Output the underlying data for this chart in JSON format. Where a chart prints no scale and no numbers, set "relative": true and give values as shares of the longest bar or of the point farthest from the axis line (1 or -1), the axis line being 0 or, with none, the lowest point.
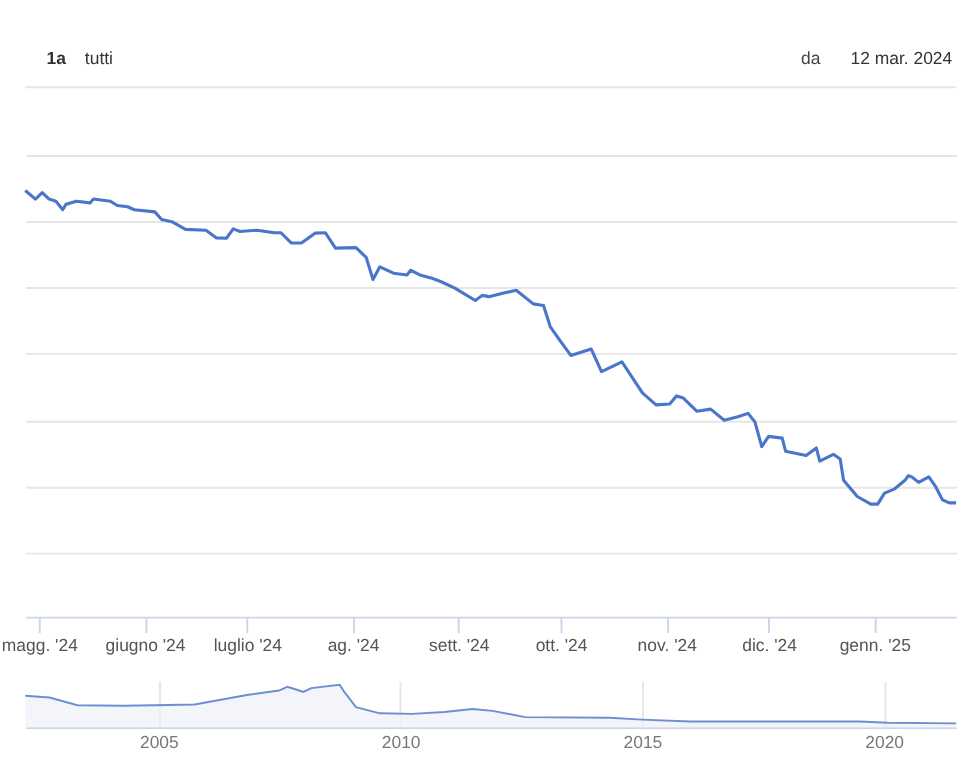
{
  "chart_data": [
    {
      "type": "line",
      "relative": true,
      "grid": "y",
      "color": "#4a76c9",
      "annotations": [
        "1a",
        "tutti",
        "da",
        "12 mar. 2024"
      ],
      "xlim": [
        "2024-04-27",
        "2025-01-25"
      ],
      "xticks": [
        {
          "value": "2024-05-01",
          "label": "magg. '24"
        },
        {
          "value": "2024-06-01",
          "label": "giugno '24"
        },
        {
          "value": "2024-07-01",
          "label": "luglio '24"
        },
        {
          "value": "2024-08-01",
          "label": "ag. '24"
        },
        {
          "value": "2024-09-01",
          "label": "sett. '24"
        },
        {
          "value": "2024-10-01",
          "label": "ott. '24"
        },
        {
          "value": "2024-11-01",
          "label": "nov. '24"
        },
        {
          "value": "2024-12-01",
          "label": "dic. '24"
        },
        {
          "value": "2025-01-01",
          "label": "genn. '25"
        }
      ],
      "x": [
        "2024-04-27",
        "2024-04-30",
        "2024-05-02",
        "2024-05-04",
        "2024-05-06",
        "2024-05-08",
        "2024-05-09",
        "2024-05-12",
        "2024-05-16",
        "2024-05-17",
        "2024-05-22",
        "2024-05-24",
        "2024-05-27",
        "2024-05-29",
        "2024-06-04",
        "2024-06-06",
        "2024-06-09",
        "2024-06-13",
        "2024-06-19",
        "2024-06-22",
        "2024-06-25",
        "2024-06-27",
        "2024-06-29",
        "2024-07-04",
        "2024-07-09",
        "2024-07-11",
        "2024-07-14",
        "2024-07-17",
        "2024-07-21",
        "2024-07-24",
        "2024-07-25",
        "2024-07-27",
        "2024-08-02",
        "2024-08-05",
        "2024-08-07",
        "2024-08-09",
        "2024-08-13",
        "2024-08-17",
        "2024-08-18",
        "2024-08-21",
        "2024-08-24",
        "2024-08-27",
        "2024-08-31",
        "2024-09-06",
        "2024-09-08",
        "2024-09-10",
        "2024-09-14",
        "2024-09-18",
        "2024-09-23",
        "2024-09-26",
        "2024-09-28",
        "2024-10-01",
        "2024-10-04",
        "2024-10-10",
        "2024-10-13",
        "2024-10-19",
        "2024-10-25",
        "2024-10-29",
        "2024-11-02",
        "2024-11-04",
        "2024-11-06",
        "2024-11-10",
        "2024-11-14",
        "2024-11-18",
        "2024-11-22",
        "2024-11-25",
        "2024-11-27",
        "2024-11-29",
        "2024-12-01",
        "2024-12-05",
        "2024-12-06",
        "2024-12-12",
        "2024-12-15",
        "2024-12-16",
        "2024-12-20",
        "2024-12-22",
        "2024-12-23",
        "2024-12-27",
        "2024-12-31",
        "2025-01-02",
        "2025-01-04",
        "2025-01-07",
        "2025-01-10",
        "2025-01-11",
        "2025-01-12",
        "2025-01-14",
        "2025-01-17",
        "2025-01-19",
        "2025-01-21",
        "2025-01-23",
        "2025-01-25"
      ],
      "values": [
        1.0,
        0.98,
        0.995,
        0.98,
        0.975,
        0.955,
        0.968,
        0.975,
        0.971,
        0.98,
        0.975,
        0.965,
        0.962,
        0.955,
        0.95,
        0.932,
        0.927,
        0.909,
        0.907,
        0.889,
        0.888,
        0.91,
        0.904,
        0.907,
        0.901,
        0.901,
        0.877,
        0.877,
        0.9,
        0.901,
        0.889,
        0.865,
        0.866,
        0.843,
        0.791,
        0.821,
        0.806,
        0.802,
        0.813,
        0.801,
        0.795,
        0.786,
        0.771,
        0.742,
        0.754,
        0.751,
        0.759,
        0.766,
        0.734,
        0.73,
        0.68,
        0.646,
        0.613,
        0.628,
        0.575,
        0.598,
        0.525,
        0.497,
        0.499,
        0.518,
        0.513,
        0.482,
        0.487,
        0.461,
        0.469,
        0.477,
        0.457,
        0.399,
        0.423,
        0.419,
        0.388,
        0.378,
        0.396,
        0.365,
        0.381,
        0.37,
        0.32,
        0.282,
        0.264,
        0.264,
        0.29,
        0.3,
        0.32,
        0.331,
        0.328,
        0.315,
        0.328,
        0.305,
        0.274,
        0.267,
        0.267
      ]
    },
    {
      "type": "area",
      "relative": true,
      "grid": "x",
      "color": "#6d8fd0",
      "xlim": [
        "2002-04",
        "2021-07"
      ],
      "xticks": [
        {
          "value": "2005",
          "label": "2005"
        },
        {
          "value": "2010",
          "label": "2010"
        },
        {
          "value": "2015",
          "label": "2015"
        },
        {
          "value": "2020",
          "label": "2020"
        }
      ],
      "x": [
        "2002-04",
        "2002-10",
        "2003-05",
        "2004-04",
        "2004-12",
        "2005-10",
        "2006-11",
        "2007-07",
        "2007-09",
        "2007-11",
        "2008-01",
        "2008-03",
        "2008-10",
        "2008-11",
        "2009-02",
        "2009-08",
        "2010-04",
        "2010-12",
        "2011-07",
        "2011-12",
        "2012-08",
        "2014-05",
        "2015-01",
        "2016-01",
        "2019-07",
        "2020-02",
        "2021-07"
      ],
      "values": [
        0.744,
        0.7,
        0.52,
        0.507,
        0.52,
        0.538,
        0.762,
        0.865,
        0.955,
        0.897,
        0.834,
        0.924,
        1.0,
        0.852,
        0.475,
        0.327,
        0.314,
        0.359,
        0.43,
        0.386,
        0.238,
        0.224,
        0.179,
        0.135,
        0.135,
        0.103,
        0.09
      ]
    }
  ]
}
